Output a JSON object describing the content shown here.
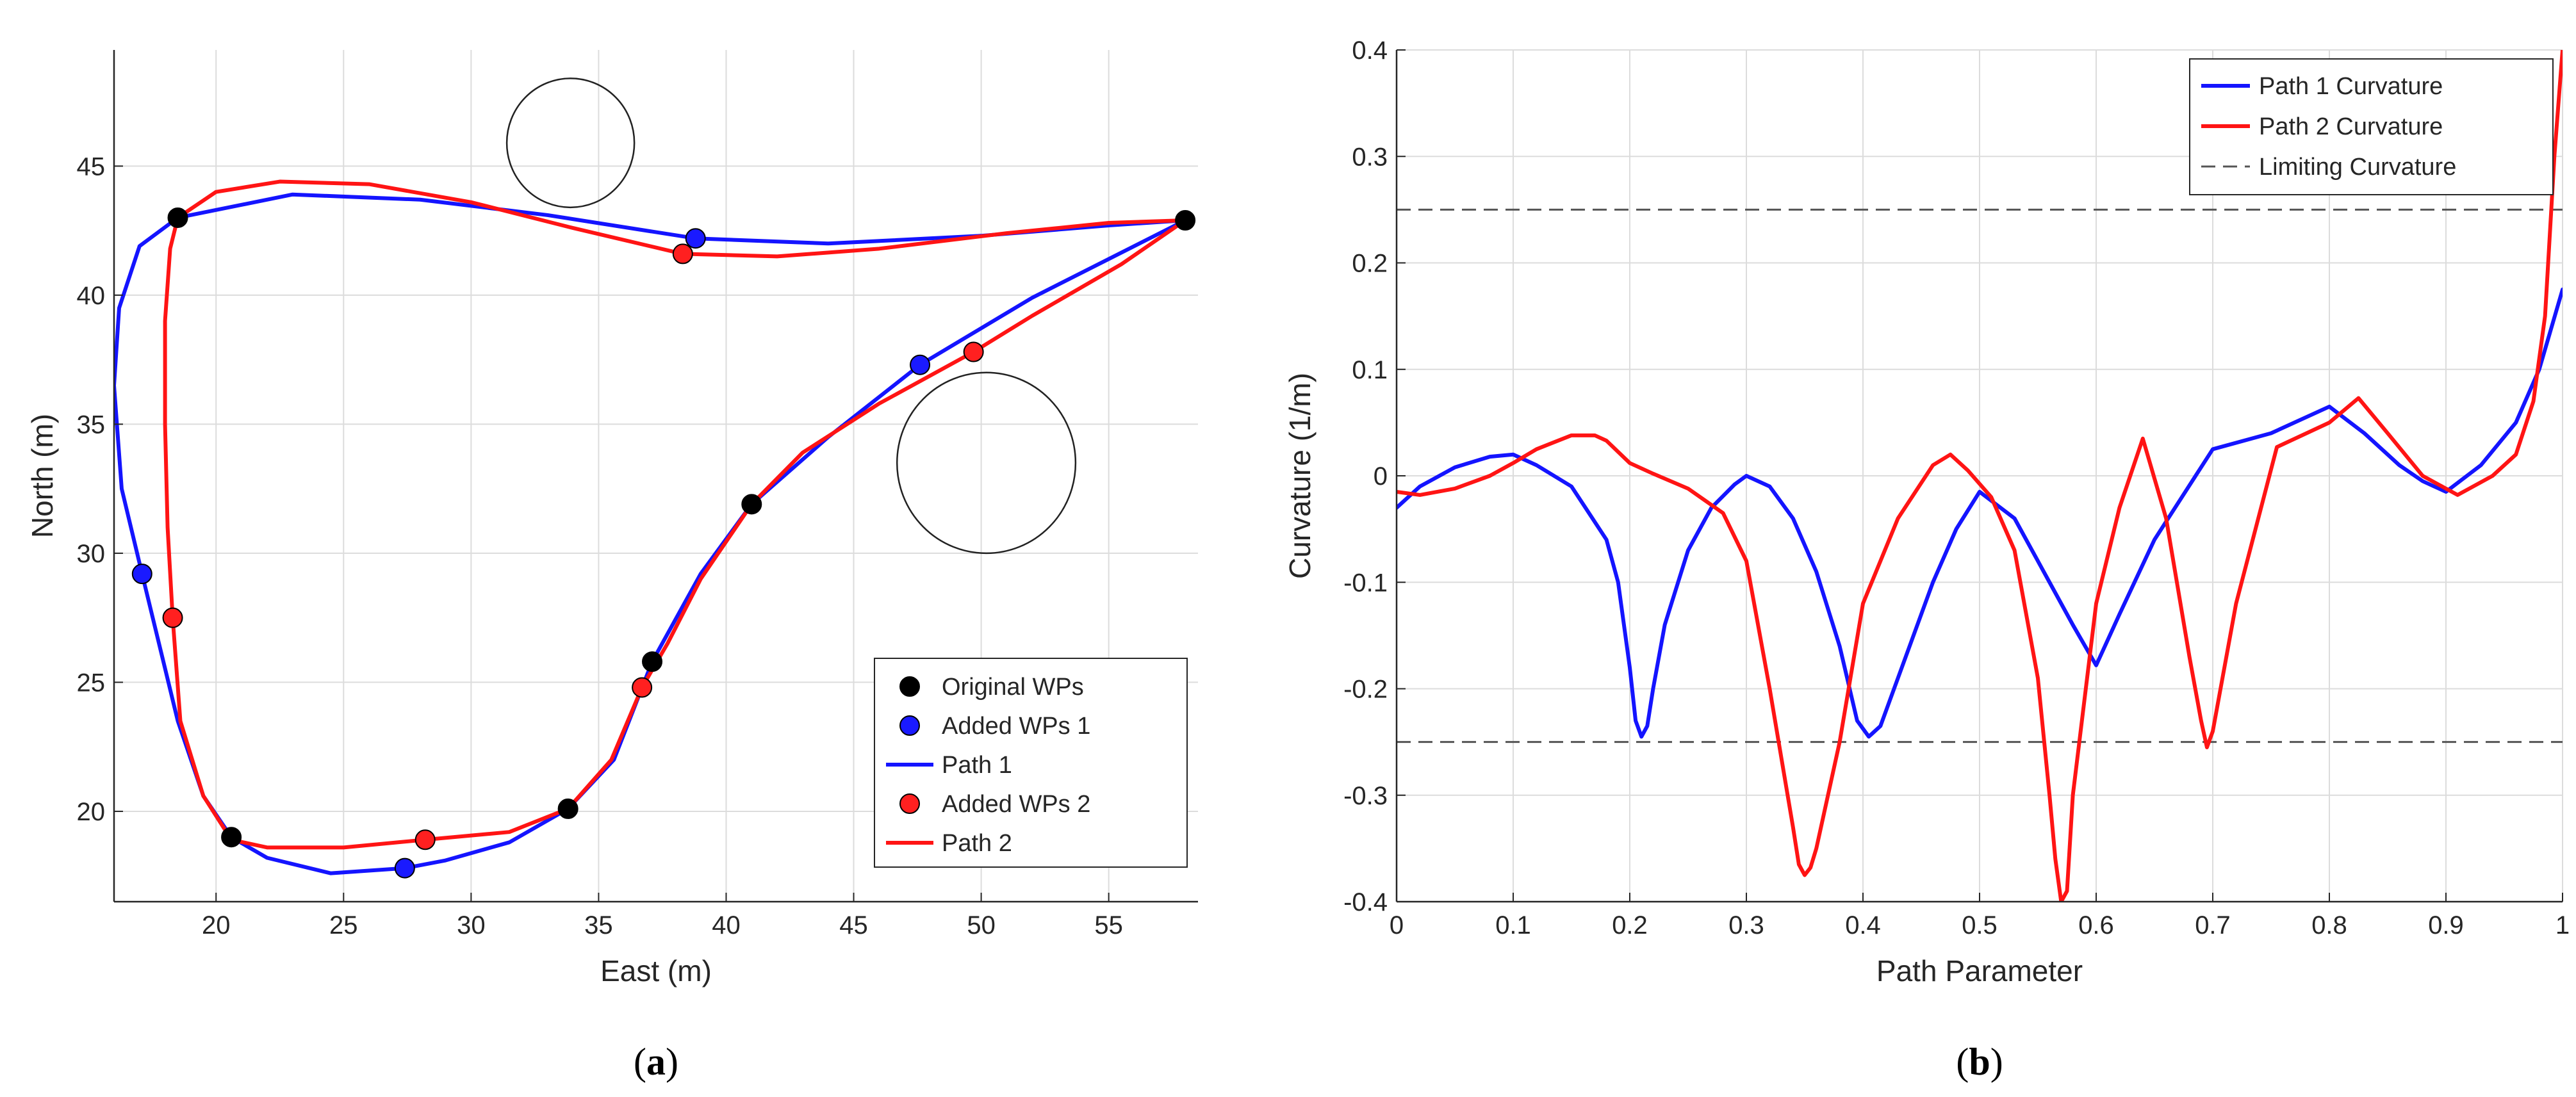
{
  "chart_data": [
    {
      "panel": "a",
      "caption_label": "a",
      "type": "line",
      "xlabel": "East (m)",
      "ylabel": "North (m)",
      "xlim": [
        16,
        58.5
      ],
      "ylim": [
        16.5,
        49.5
      ],
      "xticks": [
        20,
        25,
        30,
        35,
        40,
        45,
        50,
        55
      ],
      "yticks": [
        20,
        25,
        30,
        35,
        40,
        45
      ],
      "legend_position": "bottom-right",
      "legend": [
        "Original WPs",
        "Added WPs 1",
        "Path 1",
        "Added WPs 2",
        "Path 2"
      ],
      "obstacles": [
        {
          "name": "obstacle-1",
          "cx": 33.9,
          "cy": 45.9,
          "r": 2.5
        },
        {
          "name": "obstacle-2",
          "cx": 50.2,
          "cy": 33.5,
          "r": 3.5
        }
      ],
      "original_wps": {
        "name": "Original WPs",
        "color": "#000000",
        "x": [
          18.5,
          58.0,
          41.0,
          37.1,
          33.8,
          20.6
        ],
        "y": [
          43.0,
          42.9,
          31.9,
          25.8,
          20.1,
          19.0
        ]
      },
      "added_wps_1": {
        "name": "Added WPs 1",
        "color": "#1a1aff",
        "x": [
          38.8,
          47.6,
          27.4,
          17.1
        ],
        "y": [
          42.2,
          37.3,
          17.8,
          29.2
        ]
      },
      "added_wps_2": {
        "name": "Added WPs 2",
        "color": "#ff2020",
        "x": [
          38.3,
          49.7,
          36.7,
          28.2,
          18.3
        ],
        "y": [
          41.6,
          37.8,
          24.8,
          18.9,
          27.5
        ]
      },
      "series": [
        {
          "name": "Path 1",
          "color": "#1414ff",
          "x": [
            18.5,
            23.0,
            28.0,
            33.0,
            38.8,
            44.0,
            50.0,
            55.0,
            58.0,
            56.0,
            52.0,
            47.6,
            44.0,
            41.0,
            39.0,
            37.1,
            35.6,
            33.8,
            31.5,
            29.0,
            27.4,
            24.5,
            22.0,
            20.6,
            19.5,
            18.5,
            17.1,
            16.3,
            16.0,
            16.2,
            17.0,
            18.5
          ],
          "y": [
            43.0,
            43.9,
            43.7,
            43.1,
            42.2,
            42.0,
            42.3,
            42.7,
            42.9,
            41.9,
            39.9,
            37.3,
            34.5,
            31.9,
            29.2,
            25.8,
            22.0,
            20.1,
            18.8,
            18.1,
            17.8,
            17.6,
            18.2,
            19.0,
            20.6,
            23.5,
            29.2,
            32.5,
            36.5,
            39.5,
            41.9,
            43.0
          ]
        },
        {
          "name": "Path 2",
          "color": "#ff1414",
          "x": [
            18.5,
            20.0,
            22.5,
            26.0,
            30.0,
            34.0,
            38.3,
            42.0,
            46.0,
            51.0,
            55.0,
            58.0,
            55.5,
            52.0,
            49.7,
            46.0,
            43.0,
            41.0,
            39.0,
            37.7,
            36.7,
            35.5,
            33.8,
            31.5,
            28.2,
            25.0,
            22.0,
            20.6,
            19.5,
            18.6,
            18.3,
            18.1,
            18.0,
            18.0,
            18.2,
            18.5
          ],
          "y": [
            43.0,
            44.0,
            44.4,
            44.3,
            43.6,
            42.6,
            41.6,
            41.5,
            41.8,
            42.4,
            42.8,
            42.9,
            41.2,
            39.2,
            37.8,
            35.8,
            33.9,
            31.9,
            29.0,
            26.5,
            24.8,
            22.0,
            20.1,
            19.2,
            18.9,
            18.6,
            18.6,
            18.9,
            20.6,
            23.5,
            27.5,
            31.0,
            35.0,
            39.0,
            41.8,
            43.0
          ]
        }
      ]
    },
    {
      "panel": "b",
      "caption_label": "b",
      "type": "line",
      "xlabel": "Path Parameter",
      "ylabel": "Curvature (1/m)",
      "xlim": [
        0,
        1
      ],
      "ylim": [
        -0.4,
        0.4
      ],
      "xticks": [
        0,
        0.1,
        0.2,
        0.3,
        0.4,
        0.5,
        0.6,
        0.7,
        0.8,
        0.9,
        1
      ],
      "xticklabels": [
        "0",
        "0.1",
        "0.2",
        "0.3",
        "0.4",
        "0.5",
        "0.6",
        "0.7",
        "0.8",
        "0.9",
        "1"
      ],
      "yticks": [
        -0.4,
        -0.3,
        -0.2,
        -0.1,
        0,
        0.1,
        0.2,
        0.3,
        0.4
      ],
      "yticklabels": [
        "-0.4",
        "-0.3",
        "-0.2",
        "-0.1",
        "0",
        "0.1",
        "0.2",
        "0.3",
        "0.4"
      ],
      "legend_position": "top-right",
      "legend": [
        "Path 1 Curvature",
        "Path 2 Curvature",
        "Limiting Curvature"
      ],
      "limits": [
        0.25,
        -0.25
      ],
      "series": [
        {
          "name": "Path 1 Curvature",
          "color": "#1414ff",
          "x": [
            0,
            0.02,
            0.05,
            0.08,
            0.1,
            0.12,
            0.15,
            0.18,
            0.19,
            0.2,
            0.205,
            0.21,
            0.215,
            0.22,
            0.23,
            0.25,
            0.27,
            0.29,
            0.3,
            0.32,
            0.34,
            0.36,
            0.38,
            0.395,
            0.405,
            0.415,
            0.43,
            0.46,
            0.48,
            0.5,
            0.53,
            0.56,
            0.58,
            0.6,
            0.62,
            0.65,
            0.7,
            0.75,
            0.8,
            0.83,
            0.86,
            0.88,
            0.9,
            0.93,
            0.96,
            0.98,
            1.0
          ],
          "y": [
            -0.03,
            -0.01,
            0.008,
            0.018,
            0.02,
            0.01,
            -0.01,
            -0.06,
            -0.1,
            -0.18,
            -0.23,
            -0.245,
            -0.235,
            -0.2,
            -0.14,
            -0.07,
            -0.03,
            -0.008,
            0.0,
            -0.01,
            -0.04,
            -0.09,
            -0.16,
            -0.23,
            -0.245,
            -0.235,
            -0.19,
            -0.1,
            -0.05,
            -0.015,
            -0.04,
            -0.1,
            -0.14,
            -0.178,
            -0.13,
            -0.06,
            0.025,
            0.04,
            0.065,
            0.04,
            0.01,
            -0.005,
            -0.015,
            0.01,
            0.05,
            0.1,
            0.175
          ]
        },
        {
          "name": "Path 2 Curvature",
          "color": "#ff1414",
          "x": [
            0,
            0.02,
            0.05,
            0.08,
            0.1,
            0.12,
            0.15,
            0.17,
            0.18,
            0.2,
            0.22,
            0.25,
            0.28,
            0.3,
            0.32,
            0.34,
            0.345,
            0.35,
            0.355,
            0.36,
            0.38,
            0.4,
            0.43,
            0.46,
            0.475,
            0.49,
            0.51,
            0.53,
            0.55,
            0.56,
            0.565,
            0.57,
            0.575,
            0.58,
            0.6,
            0.62,
            0.64,
            0.66,
            0.68,
            0.69,
            0.695,
            0.7,
            0.72,
            0.755,
            0.8,
            0.825,
            0.85,
            0.88,
            0.91,
            0.94,
            0.96,
            0.975,
            0.985,
            0.993,
            1.0
          ],
          "y": [
            -0.015,
            -0.018,
            -0.012,
            0.0,
            0.012,
            0.025,
            0.038,
            0.038,
            0.033,
            0.012,
            0.002,
            -0.012,
            -0.035,
            -0.08,
            -0.2,
            -0.33,
            -0.365,
            -0.375,
            -0.368,
            -0.35,
            -0.25,
            -0.12,
            -0.04,
            0.01,
            0.02,
            0.005,
            -0.02,
            -0.07,
            -0.19,
            -0.3,
            -0.36,
            -0.4,
            -0.39,
            -0.3,
            -0.12,
            -0.03,
            0.035,
            -0.04,
            -0.17,
            -0.23,
            -0.255,
            -0.24,
            -0.12,
            0.027,
            0.05,
            0.073,
            0.04,
            0.0,
            -0.018,
            0.0,
            0.02,
            0.07,
            0.15,
            0.3,
            0.4
          ]
        },
        {
          "name": "Limiting Curvature",
          "color": "#555555",
          "dashed": true,
          "x": [
            0,
            1
          ],
          "y": [
            0.25,
            0.25
          ]
        }
      ]
    }
  ]
}
